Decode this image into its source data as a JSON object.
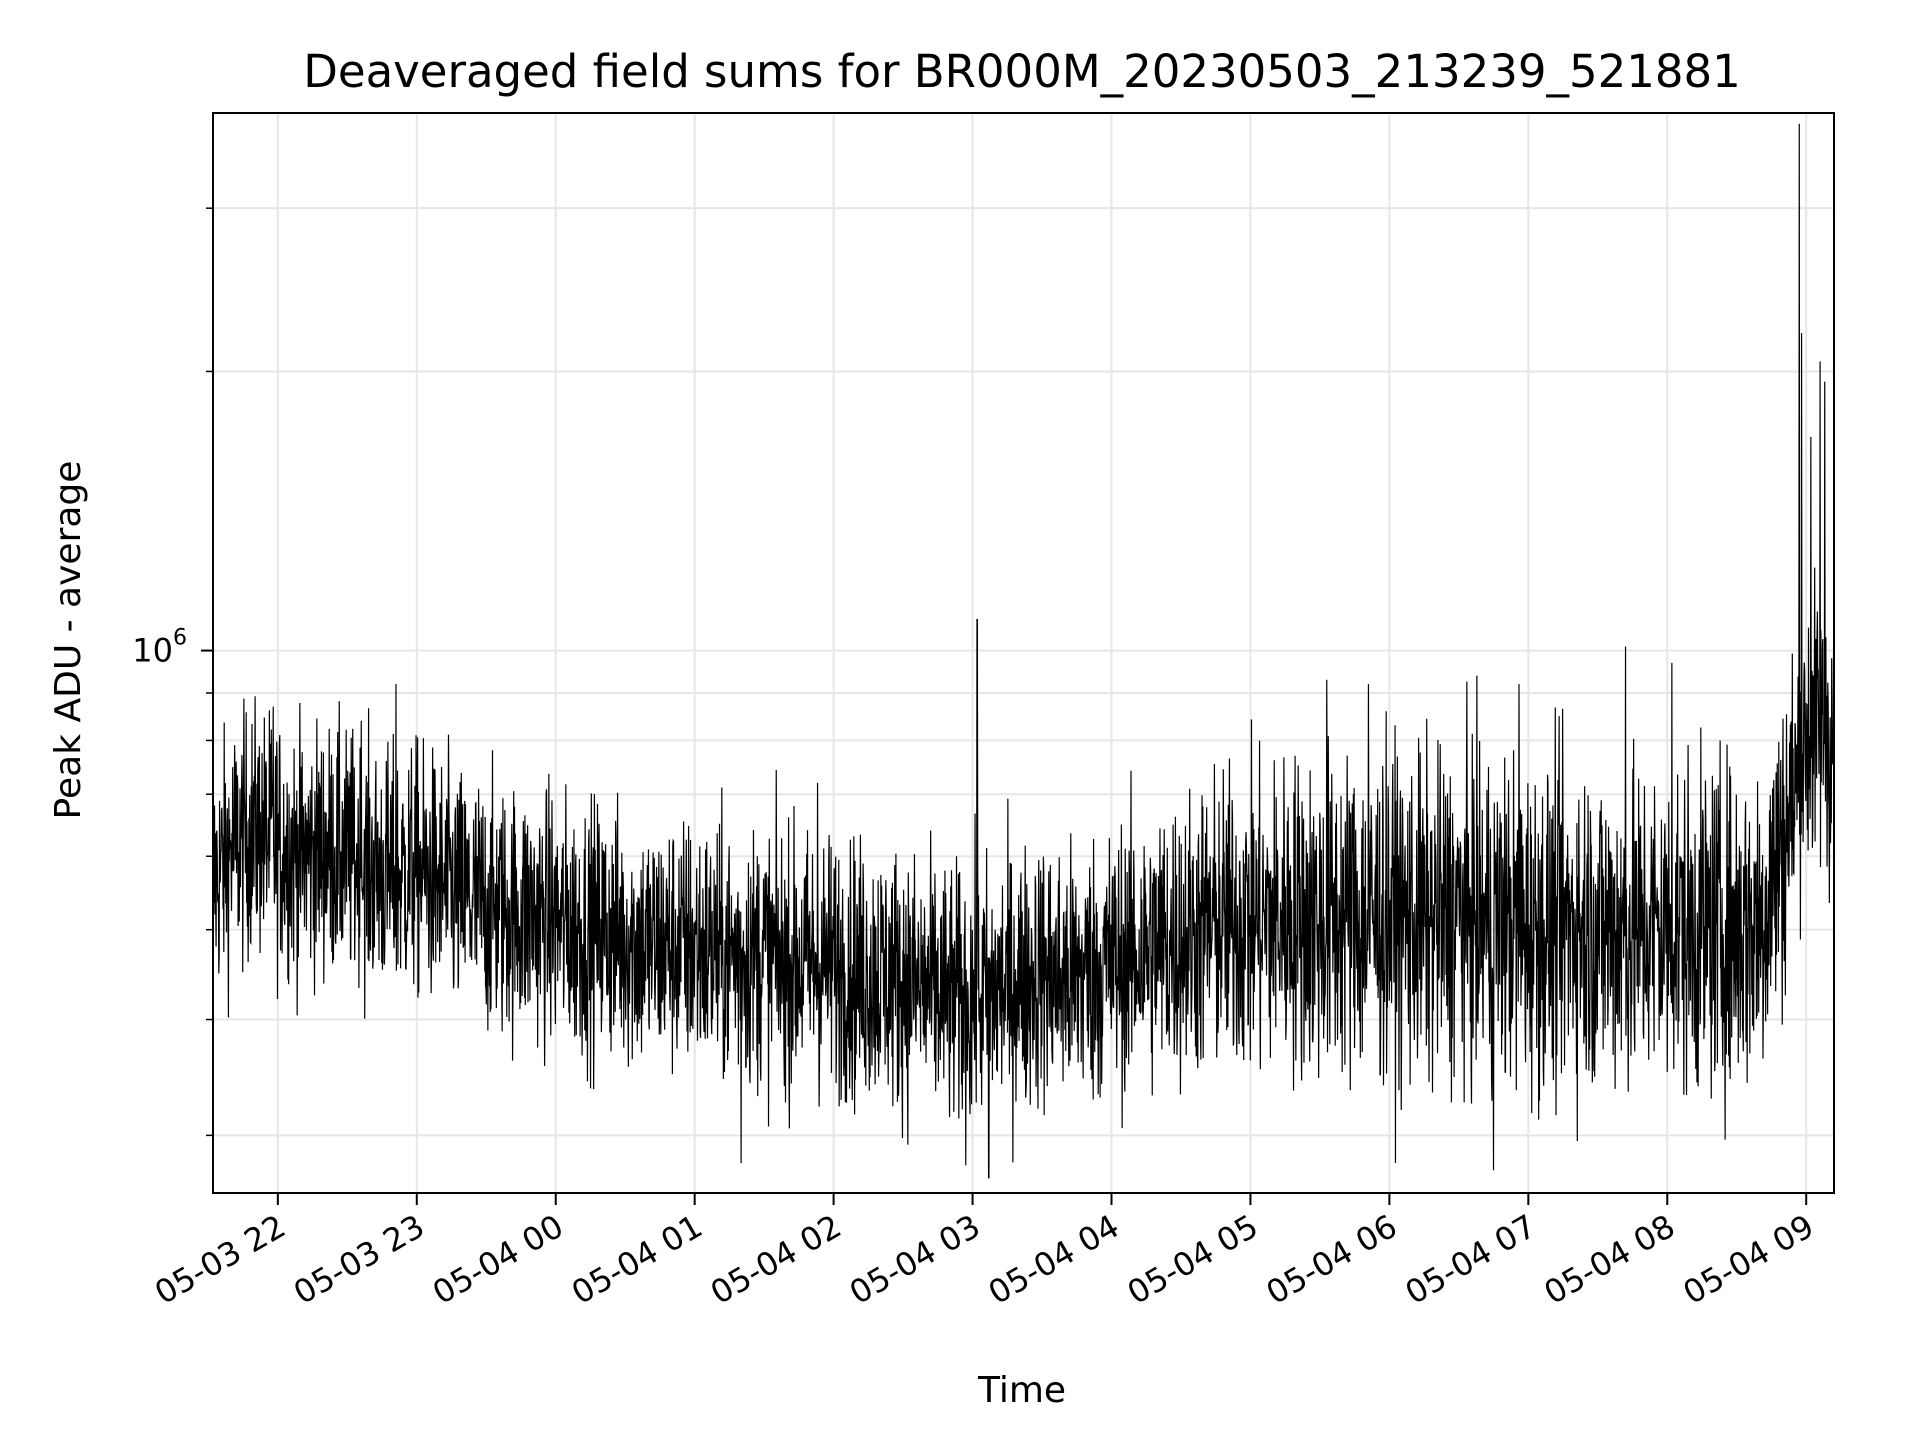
{
  "chart_data": {
    "type": "line",
    "title": "Deaveraged field sums for BR000M_20230503_213239_521881",
    "xlabel": "Time",
    "ylabel": "Peak ADU - average",
    "y_scale": "log",
    "grid": true,
    "legend": "none",
    "line_color": "#000000",
    "x_range": [
      "2023-05-03 21:32",
      "2023-05-04 09:12"
    ],
    "y_range": [
      260000,
      3800000
    ],
    "x_ticks": [
      {
        "t": "2023-05-03 22:00",
        "label": "05-03 22"
      },
      {
        "t": "2023-05-03 23:00",
        "label": "05-03 23"
      },
      {
        "t": "2023-05-04 00:00",
        "label": "05-04 00"
      },
      {
        "t": "2023-05-04 01:00",
        "label": "05-04 01"
      },
      {
        "t": "2023-05-04 02:00",
        "label": "05-04 02"
      },
      {
        "t": "2023-05-04 03:00",
        "label": "05-04 03"
      },
      {
        "t": "2023-05-04 04:00",
        "label": "05-04 04"
      },
      {
        "t": "2023-05-04 05:00",
        "label": "05-04 05"
      },
      {
        "t": "2023-05-04 06:00",
        "label": "05-04 06"
      },
      {
        "t": "2023-05-04 07:00",
        "label": "05-04 07"
      },
      {
        "t": "2023-05-04 08:00",
        "label": "05-04 08"
      },
      {
        "t": "2023-05-04 09:00",
        "label": "05-04 09"
      }
    ],
    "y_major_ticks": [
      {
        "value": 1000000,
        "base": "10",
        "exponent": "6"
      }
    ],
    "y_minor_ticks": [
      300000,
      400000,
      500000,
      600000,
      700000,
      800000,
      900000,
      2000000,
      3000000
    ],
    "series": [
      {
        "points": [
          [
            "2023-05-03 21:32",
            560000
          ],
          [
            "2023-05-03 21:40",
            610000
          ],
          [
            "2023-05-03 21:50",
            640000
          ],
          [
            "2023-05-03 22:00",
            620000
          ],
          [
            "2023-05-03 22:10",
            600000
          ],
          [
            "2023-05-03 22:20",
            610000
          ],
          [
            "2023-05-03 22:30",
            600000
          ],
          [
            "2023-05-03 22:40",
            580000
          ],
          [
            "2023-05-03 22:50",
            570000
          ],
          [
            "2023-05-03 23:00",
            580000
          ],
          [
            "2023-05-03 23:10",
            560000
          ],
          [
            "2023-05-03 23:20",
            540000
          ],
          [
            "2023-05-03 23:30",
            530000
          ],
          [
            "2023-05-03 23:40",
            520000
          ],
          [
            "2023-05-03 23:50",
            520000
          ],
          [
            "2023-05-04 00:00",
            510000
          ],
          [
            "2023-05-04 00:10",
            500000
          ],
          [
            "2023-05-04 00:20",
            500000
          ],
          [
            "2023-05-04 00:30",
            490000
          ],
          [
            "2023-05-04 00:40",
            480000
          ],
          [
            "2023-05-04 00:50",
            480000
          ],
          [
            "2023-05-04 01:00",
            480000
          ],
          [
            "2023-05-04 01:10",
            470000
          ],
          [
            "2023-05-04 01:20",
            470000
          ],
          [
            "2023-05-04 01:30",
            470000
          ],
          [
            "2023-05-04 01:40",
            460000
          ],
          [
            "2023-05-04 01:50",
            460000
          ],
          [
            "2023-05-04 02:00",
            460000
          ],
          [
            "2023-05-04 02:10",
            450000
          ],
          [
            "2023-05-04 02:20",
            450000
          ],
          [
            "2023-05-04 02:30",
            440000
          ],
          [
            "2023-05-04 02:40",
            430000
          ],
          [
            "2023-05-04 02:50",
            420000
          ],
          [
            "2023-05-04 03:00",
            420000
          ],
          [
            "2023-05-04 03:10",
            430000
          ],
          [
            "2023-05-04 03:20",
            440000
          ],
          [
            "2023-05-04 03:30",
            450000
          ],
          [
            "2023-05-04 03:40",
            440000
          ],
          [
            "2023-05-04 03:50",
            450000
          ],
          [
            "2023-05-04 04:00",
            460000
          ],
          [
            "2023-05-04 04:10",
            470000
          ],
          [
            "2023-05-04 04:20",
            480000
          ],
          [
            "2023-05-04 04:30",
            490000
          ],
          [
            "2023-05-04 04:40",
            500000
          ],
          [
            "2023-05-04 04:50",
            510000
          ],
          [
            "2023-05-04 05:00",
            510000
          ],
          [
            "2023-05-04 05:10",
            510000
          ],
          [
            "2023-05-04 05:20",
            520000
          ],
          [
            "2023-05-04 05:30",
            510000
          ],
          [
            "2023-05-04 05:40",
            520000
          ],
          [
            "2023-05-04 05:50",
            510000
          ],
          [
            "2023-05-04 06:00",
            520000
          ],
          [
            "2023-05-04 06:10",
            510000
          ],
          [
            "2023-05-04 06:20",
            510000
          ],
          [
            "2023-05-04 06:30",
            520000
          ],
          [
            "2023-05-04 06:40",
            510000
          ],
          [
            "2023-05-04 06:50",
            510000
          ],
          [
            "2023-05-04 07:00",
            500000
          ],
          [
            "2023-05-04 07:10",
            500000
          ],
          [
            "2023-05-04 07:20",
            510000
          ],
          [
            "2023-05-04 07:30",
            500000
          ],
          [
            "2023-05-04 07:40",
            500000
          ],
          [
            "2023-05-04 07:50",
            500000
          ],
          [
            "2023-05-04 08:00",
            500000
          ],
          [
            "2023-05-04 08:10",
            500000
          ],
          [
            "2023-05-04 08:20",
            500000
          ],
          [
            "2023-05-04 08:30",
            500000
          ],
          [
            "2023-05-04 08:40",
            510000
          ],
          [
            "2023-05-04 08:50",
            620000
          ],
          [
            "2023-05-04 09:00",
            800000
          ],
          [
            "2023-05-04 09:05",
            830000
          ],
          [
            "2023-05-04 09:10",
            800000
          ]
        ],
        "noise_half_width_decades": [
          [
            "2023-05-03 21:32",
            0.12
          ],
          [
            "2023-05-04 04:00",
            0.13
          ],
          [
            "2023-05-04 05:30",
            0.16
          ],
          [
            "2023-05-04 08:50",
            0.16
          ],
          [
            "2023-05-04 09:00",
            0.14
          ],
          [
            "2023-05-04 09:12",
            0.14
          ]
        ],
        "spikes": [
          [
            "2023-05-03 21:58",
            870000
          ],
          [
            "2023-05-03 22:36",
            840000
          ],
          [
            "2023-05-03 22:51",
            920000
          ],
          [
            "2023-05-04 01:53",
            720000
          ],
          [
            "2023-05-04 03:02",
            1080000
          ],
          [
            "2023-05-04 03:07",
            270000
          ],
          [
            "2023-05-04 05:33",
            930000
          ],
          [
            "2023-05-04 05:51",
            920000
          ],
          [
            "2023-05-04 06:56",
            920000
          ],
          [
            "2023-05-04 07:42",
            1010000
          ],
          [
            "2023-05-04 08:02",
            970000
          ],
          [
            "2023-05-04 08:57",
            3700000
          ],
          [
            "2023-05-04 08:58",
            2200000
          ],
          [
            "2023-05-04 09:02",
            1700000
          ],
          [
            "2023-05-04 09:06",
            2050000
          ],
          [
            "2023-05-04 09:08",
            1950000
          ],
          [
            "2023-05-04 06:45",
            275000
          ],
          [
            "2023-05-04 01:20",
            280000
          ]
        ]
      }
    ]
  }
}
